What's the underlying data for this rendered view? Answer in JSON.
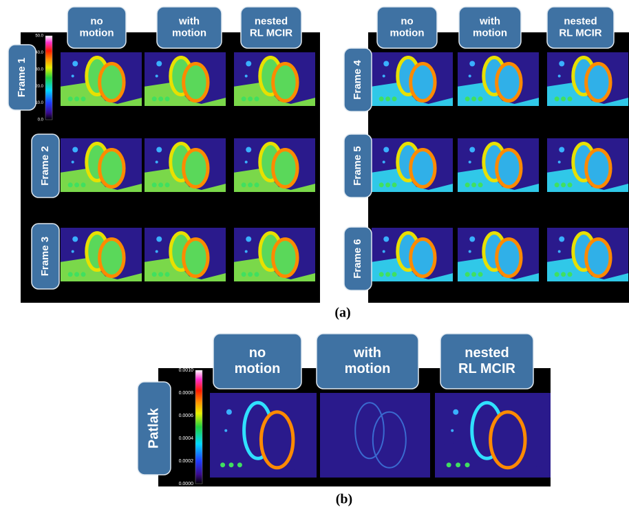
{
  "panel_a": {
    "caption": "(a)",
    "left": {
      "columns": [
        [
          "no",
          "motion"
        ],
        [
          "with",
          "motion"
        ],
        [
          "nested",
          "RL MCIR"
        ]
      ],
      "rows": [
        "Frame 1",
        "Frame 2",
        "Frame 3"
      ],
      "colorbar_ticks": [
        "50.0",
        "40.0",
        "30.0",
        "20.0",
        "10.0",
        "0.0"
      ]
    },
    "right": {
      "columns": [
        [
          "no",
          "motion"
        ],
        [
          "with",
          "motion"
        ],
        [
          "nested",
          "RL MCIR"
        ]
      ],
      "rows": [
        "Frame 4",
        "Frame 5",
        "Frame 6"
      ]
    }
  },
  "panel_b": {
    "caption": "(b)",
    "columns": [
      [
        "no",
        "motion"
      ],
      [
        "with",
        "motion"
      ],
      [
        "nested",
        "RL MCIR"
      ]
    ],
    "rows": [
      "Patlak"
    ],
    "colorbar_ticks": [
      "0.0010",
      "0.0008",
      "0.0006",
      "0.0004",
      "0.0002",
      "0.0000"
    ]
  }
}
